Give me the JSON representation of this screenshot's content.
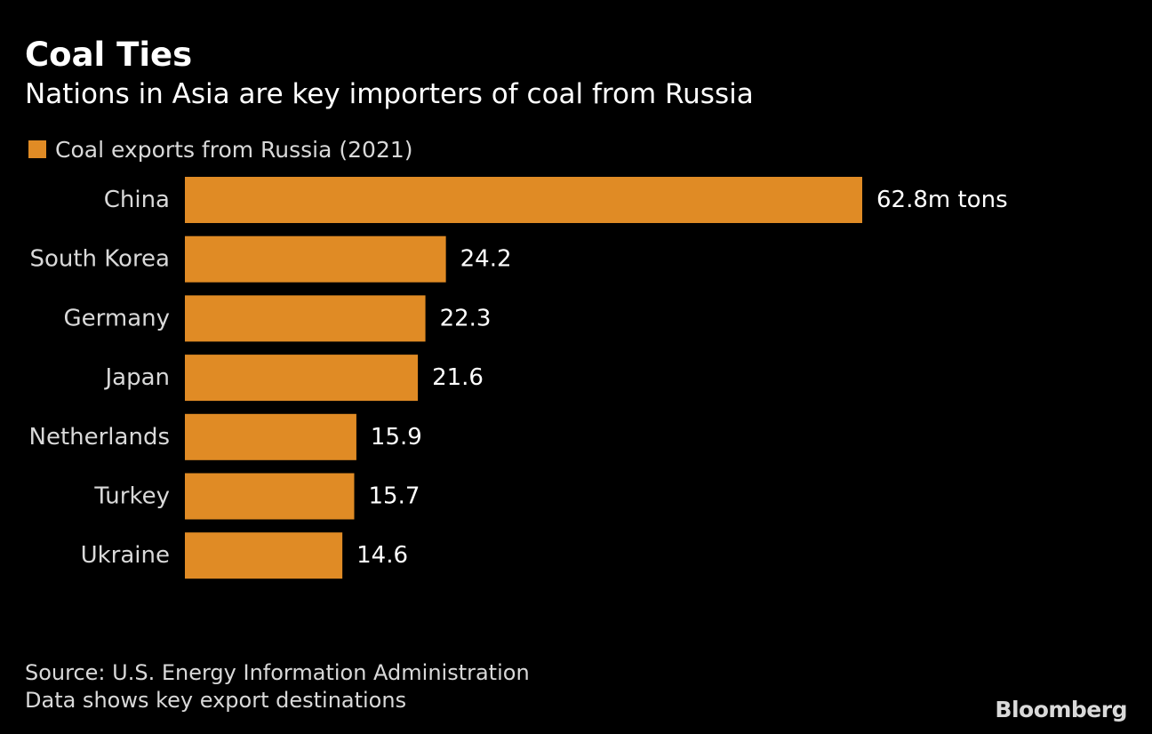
{
  "header": {
    "title": "Coal Ties",
    "subtitle": "Nations in Asia are key importers of coal from Russia"
  },
  "colors": {
    "bar": "#e08b25",
    "background": "#000000"
  },
  "chart_data": {
    "type": "bar",
    "orientation": "horizontal",
    "title": "Coal Ties",
    "subtitle": "Nations in Asia are key importers of coal from Russia",
    "categories": [
      "China",
      "South Korea",
      "Germany",
      "Japan",
      "Netherlands",
      "Turkey",
      "Ukraine"
    ],
    "series": [
      {
        "name": "Coal exports from Russia (2021)",
        "values": [
          62.8,
          24.2,
          22.3,
          21.6,
          15.9,
          15.7,
          14.6
        ]
      }
    ],
    "value_labels": [
      "62.8m tons",
      "24.2",
      "22.3",
      "21.6",
      "15.9",
      "15.7",
      "14.6"
    ],
    "unit": "m tons",
    "xlim": [
      0,
      62.8
    ],
    "grid": false,
    "legend_position": "top-left"
  },
  "footer": {
    "source": "Source: U.S. Energy Information Administration",
    "note": "Data shows key export destinations",
    "brand": "Bloomberg"
  }
}
